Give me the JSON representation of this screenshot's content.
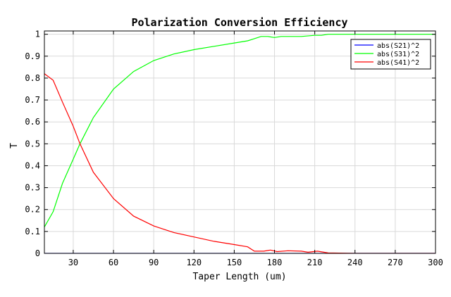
{
  "chart_data": {
    "type": "line",
    "title": "Polarization Conversion Efficiency",
    "xlabel": "Taper Length (um)",
    "ylabel": "T",
    "xlim": [
      8.5,
      300
    ],
    "ylim": [
      0,
      1.015
    ],
    "xticks": [
      30,
      60,
      90,
      120,
      150,
      180,
      210,
      240,
      270,
      300
    ],
    "yticks": [
      0,
      0.1,
      0.2,
      0.3,
      0.4,
      0.5,
      0.6,
      0.7,
      0.8,
      0.9,
      1
    ],
    "ytick_labels": [
      "0",
      "0.1",
      "0.2",
      "0.3",
      "0.4",
      "0.5",
      "0.6",
      "0.7",
      "0.8",
      "0.9",
      "1"
    ],
    "grid": true,
    "legend_position": "top-right",
    "series": [
      {
        "name": "abs(S21)^2",
        "color": "#0000ff",
        "x": [
          8.5,
          300
        ],
        "y": [
          0,
          0
        ]
      },
      {
        "name": "abs(S31)^2",
        "color": "#00ff00",
        "x": [
          8.5,
          15,
          22,
          30,
          35,
          45,
          60,
          75,
          90,
          105,
          120,
          135,
          150,
          160,
          165,
          170,
          175,
          180,
          185,
          190,
          200,
          210,
          215,
          220,
          240,
          260,
          280,
          300
        ],
        "y": [
          0.12,
          0.19,
          0.32,
          0.43,
          0.5,
          0.62,
          0.75,
          0.83,
          0.88,
          0.91,
          0.93,
          0.945,
          0.96,
          0.97,
          0.98,
          0.99,
          0.99,
          0.985,
          0.99,
          0.99,
          0.99,
          0.995,
          0.995,
          1.0,
          1.0,
          1.0,
          1.0,
          1.0
        ]
      },
      {
        "name": "abs(S41)^2",
        "color": "#ff0000",
        "x": [
          8.5,
          15,
          22,
          30,
          35,
          45,
          60,
          75,
          90,
          105,
          120,
          135,
          150,
          160,
          165,
          172,
          177,
          182,
          190,
          200,
          205,
          212,
          220,
          240,
          300
        ],
        "y": [
          0.82,
          0.79,
          0.69,
          0.58,
          0.5,
          0.37,
          0.25,
          0.17,
          0.125,
          0.095,
          0.075,
          0.055,
          0.04,
          0.03,
          0.01,
          0.01,
          0.015,
          0.008,
          0.012,
          0.01,
          0.005,
          0.01,
          0.002,
          0.0,
          0.0
        ]
      }
    ]
  }
}
